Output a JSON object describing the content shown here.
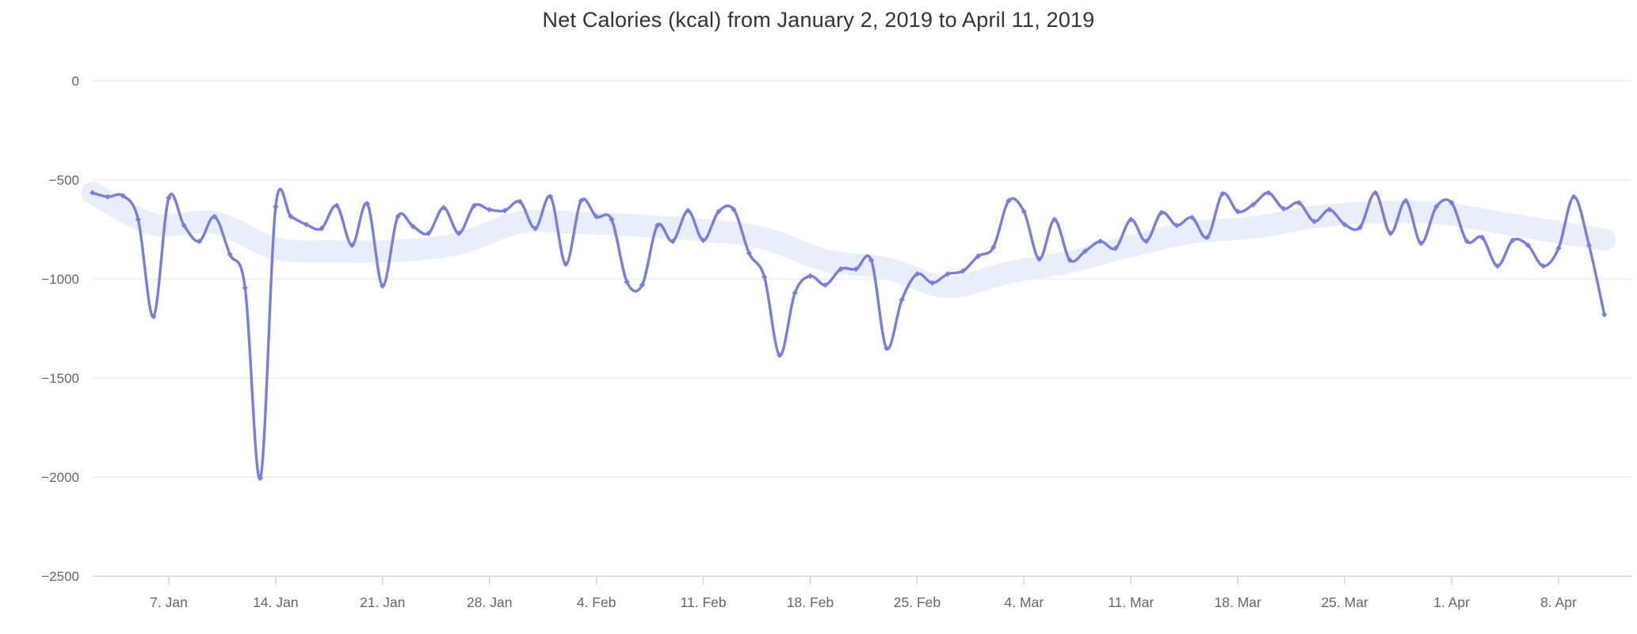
{
  "page": {
    "background": "#ffffff"
  },
  "chart_data": {
    "type": "line",
    "title": "Net Calories (kcal) from January 2, 2019 to April 11, 2019",
    "xlabel": "",
    "ylabel": "",
    "ylim": [
      -2500,
      0
    ],
    "grid": true,
    "legend": "none",
    "x_start_date": "2019-01-02",
    "x_end_date": "2019-04-11",
    "frequency": "daily",
    "x_tick_labels": [
      "7. Jan",
      "14. Jan",
      "21. Jan",
      "28. Jan",
      "4. Feb",
      "11. Feb",
      "18. Feb",
      "25. Feb",
      "4. Mar",
      "11. Mar",
      "18. Mar",
      "25. Mar",
      "1. Apr",
      "8. Apr"
    ],
    "x_tick_day_offsets": [
      5,
      12,
      19,
      26,
      33,
      40,
      47,
      54,
      61,
      68,
      75,
      82,
      89,
      96
    ],
    "y_tick_values": [
      0,
      -500,
      -1000,
      -1500,
      -2000,
      -2500
    ],
    "y_tick_labels": [
      "0",
      "−500",
      "−1000",
      "−1500",
      "−2000",
      "−2500"
    ],
    "series": [
      {
        "name": "Net Calories (kcal)",
        "color": "#767ee2",
        "marker": "diamond",
        "values": [
          -565,
          -585,
          -580,
          -700,
          -1190,
          -590,
          -730,
          -810,
          -685,
          -875,
          -1045,
          -2005,
          -635,
          -685,
          -725,
          -745,
          -630,
          -830,
          -620,
          -1035,
          -685,
          -735,
          -770,
          -640,
          -770,
          -630,
          -650,
          -655,
          -610,
          -745,
          -585,
          -925,
          -605,
          -685,
          -700,
          -1015,
          -1030,
          -730,
          -810,
          -655,
          -805,
          -660,
          -650,
          -870,
          -990,
          -1385,
          -1070,
          -985,
          -1030,
          -950,
          -950,
          -905,
          -1350,
          -1105,
          -975,
          -1020,
          -975,
          -960,
          -885,
          -840,
          -605,
          -660,
          -900,
          -700,
          -905,
          -860,
          -810,
          -845,
          -700,
          -810,
          -665,
          -730,
          -690,
          -790,
          -570,
          -660,
          -625,
          -565,
          -645,
          -615,
          -710,
          -650,
          -725,
          -740,
          -565,
          -770,
          -605,
          -820,
          -635,
          -615,
          -810,
          -790,
          -935,
          -805,
          -830,
          -935,
          -845,
          -585,
          -830,
          -1180
        ]
      }
    ],
    "background_band": {
      "description": "light smoothed trailing-average band behind the series",
      "window_days": 14,
      "color": "#e9eefb",
      "thickness_px": 28
    },
    "colors": {
      "grid": "#e6e6e6",
      "axis_line": "#ccd6eb",
      "tick": "#ccd6eb",
      "label": "#666666",
      "title": "#333333"
    }
  }
}
